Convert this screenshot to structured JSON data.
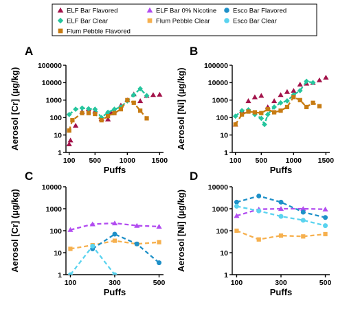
{
  "legend": {
    "entries": [
      {
        "name": "ELF Bar Flavored",
        "color": "#a3134a",
        "marker": "triangle"
      },
      {
        "name": "ELF Bar 0% Nicotine",
        "color": "#b24cf0",
        "marker": "triangle"
      },
      {
        "name": "Esco Bar Flavored",
        "color": "#1e90c8",
        "marker": "circle"
      },
      {
        "name": "ELF Bar Clear",
        "color": "#25c59d",
        "marker": "diamond"
      },
      {
        "name": "Flum Pebble Clear",
        "color": "#f6b04e",
        "marker": "square"
      },
      {
        "name": "Esco Bar Clear",
        "color": "#5ad3ef",
        "marker": "circle"
      },
      {
        "name": "Flum Pebble Flavored",
        "color": "#c77b12",
        "marker": "square"
      }
    ]
  },
  "chart_data": [
    {
      "panel": "A",
      "type": "line",
      "xlabel": "Puffs",
      "ylabel": "Aerosol [Cr] (µg/kg)",
      "xlim": [
        50,
        1560
      ],
      "ylim": [
        1,
        100000
      ],
      "yscale": "log",
      "xticks": [
        100,
        500,
        1000,
        1500
      ],
      "yticks": [
        1,
        10,
        100,
        1000,
        10000,
        100000
      ],
      "ytick_labels": [
        "1",
        "10",
        "100",
        "1000",
        "10000",
        "100000"
      ],
      "series": [
        {
          "name": "ELF Bar Flavored",
          "style": "markers",
          "x": [
            100,
            120,
            200,
            300,
            400,
            500,
            600,
            700,
            750,
            800,
            900,
            1000,
            1100,
            1200,
            1300,
            1400,
            1500
          ],
          "y": [
            3,
            5,
            35,
            220,
            320,
            230,
            85,
            80,
            180,
            250,
            500,
            1000,
            2200,
            900,
            1800,
            2000,
            2100
          ]
        },
        {
          "name": "ELF Bar Clear",
          "style": "dashed",
          "x": [
            100,
            200,
            300,
            400,
            500,
            600,
            700,
            800,
            900,
            1000,
            1100,
            1200,
            1300
          ],
          "y": [
            150,
            300,
            350,
            320,
            300,
            100,
            200,
            300,
            400,
            900,
            2000,
            4500,
            1800
          ]
        },
        {
          "name": "Flum Pebble Flavored",
          "style": "dashed",
          "x": [
            100,
            150,
            300,
            400,
            500,
            600,
            700,
            800,
            900,
            1000,
            1100,
            1200,
            1300
          ],
          "y": [
            18,
            70,
            180,
            180,
            160,
            70,
            120,
            180,
            300,
            1000,
            700,
            250,
            90
          ]
        }
      ]
    },
    {
      "panel": "B",
      "type": "line",
      "xlabel": "Puffs",
      "ylabel": "Aerosol [Ni] (µg/kg)",
      "xlim": [
        50,
        1560
      ],
      "ylim": [
        1,
        100000
      ],
      "yscale": "log",
      "xticks": [
        100,
        500,
        1000,
        1500
      ],
      "yticks": [
        1,
        10,
        100,
        1000,
        10000,
        100000
      ],
      "ytick_labels": [
        "1",
        "10",
        "100",
        "1000",
        "10000",
        "100000"
      ],
      "series": [
        {
          "name": "ELF Bar Flavored",
          "style": "markers",
          "x": [
            100,
            200,
            300,
            400,
            500,
            600,
            700,
            800,
            900,
            1000,
            1100,
            1200,
            1300,
            1400,
            1500
          ],
          "y": [
            40,
            250,
            900,
            1500,
            1800,
            400,
            900,
            2000,
            3000,
            3500,
            8000,
            9000,
            10000,
            14000,
            20000
          ]
        },
        {
          "name": "ELF Bar Clear",
          "style": "dashed",
          "x": [
            100,
            200,
            300,
            400,
            500,
            550,
            600,
            700,
            800,
            900,
            1000,
            1100,
            1200,
            1300
          ],
          "y": [
            120,
            250,
            280,
            150,
            90,
            40,
            150,
            400,
            700,
            900,
            2000,
            3500,
            12000,
            10000
          ]
        },
        {
          "name": "Flum Pebble Flavored",
          "style": "dashed",
          "x": [
            100,
            200,
            300,
            400,
            500,
            600,
            700,
            800,
            900,
            1000,
            1100,
            1200,
            1300,
            1400
          ],
          "y": [
            40,
            150,
            220,
            200,
            180,
            300,
            200,
            250,
            400,
            1500,
            1000,
            400,
            700,
            450
          ]
        }
      ]
    },
    {
      "panel": "C",
      "type": "line",
      "xlabel": "Puffs",
      "ylabel": "Aerosol [Cr] (µg/kg)",
      "xlim": [
        80,
        520
      ],
      "ylim": [
        1,
        10000
      ],
      "yscale": "log",
      "xticks": [
        100,
        300,
        500
      ],
      "yticks": [
        1,
        10,
        100,
        1000,
        10000
      ],
      "ytick_labels": [
        "1",
        "10",
        "100",
        "1000",
        "10000"
      ],
      "series": [
        {
          "name": "ELF Bar 0% Nicotine",
          "style": "dashed",
          "x": [
            100,
            200,
            300,
            400,
            500
          ],
          "y": [
            110,
            200,
            220,
            170,
            155
          ]
        },
        {
          "name": "Flum Pebble Clear",
          "style": "dashed",
          "x": [
            100,
            200,
            300,
            400,
            500
          ],
          "y": [
            15,
            22,
            35,
            25,
            30
          ]
        },
        {
          "name": "Esco Bar Flavored",
          "style": "dashed",
          "x": [
            200,
            300,
            400,
            500
          ],
          "y": [
            15,
            70,
            25,
            3.5
          ]
        },
        {
          "name": "Esco Bar Clear",
          "style": "dashed",
          "x": [
            100,
            200,
            300
          ],
          "y": [
            1,
            20,
            1
          ]
        }
      ]
    },
    {
      "panel": "D",
      "type": "line",
      "xlabel": "Puffs",
      "ylabel": "Aerosol [Ni] (µg/kg)",
      "xlim": [
        80,
        520
      ],
      "ylim": [
        1,
        10000
      ],
      "yscale": "log",
      "xticks": [
        100,
        300,
        500
      ],
      "yticks": [
        1,
        10,
        100,
        1000,
        10000
      ],
      "ytick_labels": [
        "1",
        "10",
        "100",
        "1000",
        "10000"
      ],
      "series": [
        {
          "name": "ELF Bar 0% Nicotine",
          "style": "dashed",
          "x": [
            100,
            200,
            300,
            400,
            500
          ],
          "y": [
            480,
            950,
            1000,
            1000,
            950
          ]
        },
        {
          "name": "Flum Pebble Clear",
          "style": "dashed",
          "x": [
            100,
            200,
            300,
            400,
            500
          ],
          "y": [
            100,
            40,
            60,
            55,
            70
          ]
        },
        {
          "name": "Esco Bar Flavored",
          "style": "dashed",
          "x": [
            100,
            200,
            300,
            400,
            500
          ],
          "y": [
            2000,
            3800,
            2000,
            700,
            400
          ]
        },
        {
          "name": "Esco Bar Clear",
          "style": "dashed",
          "x": [
            100,
            200,
            300,
            400,
            500
          ],
          "y": [
            1300,
            800,
            450,
            300,
            170
          ]
        }
      ]
    }
  ]
}
